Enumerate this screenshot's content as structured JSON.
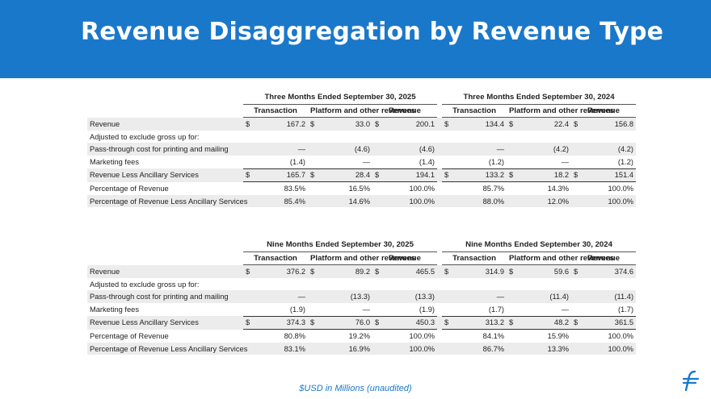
{
  "title": "Revenue Disaggregation by Revenue Type",
  "footnote": "$USD in Millions (unaudited)",
  "logo": {
    "icon": "f-logo-icon",
    "color": "#1a78cb"
  },
  "accent_color": "#1a78cb",
  "col_headers": {
    "transaction": "Transaction",
    "platform": "Platform and other revenues",
    "revenue": "Revenue"
  },
  "currency": "$",
  "tables": [
    {
      "period_a": "Three Months Ended September 30, 2025",
      "period_b": "Three Months Ended September 30, 2024",
      "rows": {
        "revenue": {
          "label": "Revenue",
          "a": [
            "167.2",
            "33.0",
            "200.1"
          ],
          "b": [
            "134.4",
            "22.4",
            "156.8"
          ]
        },
        "adjusted": {
          "label": "Adjusted to exclude gross up for:"
        },
        "passthrough": {
          "label": "Pass-through cost for printing and mailing",
          "a": [
            "—",
            "(4.6)",
            "(4.6)"
          ],
          "b": [
            "—",
            "(4.2)",
            "(4.2)"
          ]
        },
        "marketing": {
          "label": "Marketing fees",
          "a": [
            "(1.4)",
            "—",
            "(1.4)"
          ],
          "b": [
            "(1.2)",
            "—",
            "(1.2)"
          ]
        },
        "rlas": {
          "label": "Revenue Less Ancillary Services",
          "a": [
            "165.7",
            "28.4",
            "194.1"
          ],
          "b": [
            "133.2",
            "18.2",
            "151.4"
          ]
        },
        "pct_rev": {
          "label": "Percentage of Revenue",
          "a": [
            "83.5%",
            "16.5%",
            "100.0%"
          ],
          "b": [
            "85.7%",
            "14.3%",
            "100.0%"
          ]
        },
        "pct_rlas": {
          "label": "Percentage of Revenue Less Ancillary Services",
          "a": [
            "85.4%",
            "14.6%",
            "100.0%"
          ],
          "b": [
            "88.0%",
            "12.0%",
            "100.0%"
          ]
        }
      }
    },
    {
      "period_a": "Nine Months Ended September 30, 2025",
      "period_b": "Nine Months Ended September 30, 2024",
      "rows": {
        "revenue": {
          "label": "Revenue",
          "a": [
            "376.2",
            "89.2",
            "465.5"
          ],
          "b": [
            "314.9",
            "59.6",
            "374.6"
          ]
        },
        "adjusted": {
          "label": "Adjusted to exclude gross up for:"
        },
        "passthrough": {
          "label": "Pass-through cost for printing and mailing",
          "a": [
            "—",
            "(13.3)",
            "(13.3)"
          ],
          "b": [
            "—",
            "(11.4)",
            "(11.4)"
          ]
        },
        "marketing": {
          "label": "Marketing fees",
          "a": [
            "(1.9)",
            "—",
            "(1.9)"
          ],
          "b": [
            "(1.7)",
            "—",
            "(1.7)"
          ]
        },
        "rlas": {
          "label": "Revenue Less Ancillary Services",
          "a": [
            "374.3",
            "76.0",
            "450.3"
          ],
          "b": [
            "313.2",
            "48.2",
            "361.5"
          ]
        },
        "pct_rev": {
          "label": "Percentage of Revenue",
          "a": [
            "80.8%",
            "19.2%",
            "100.0%"
          ],
          "b": [
            "84.1%",
            "15.9%",
            "100.0%"
          ]
        },
        "pct_rlas": {
          "label": "Percentage of Revenue Less Ancillary Services",
          "a": [
            "83.1%",
            "16.9%",
            "100.0%"
          ],
          "b": [
            "86.7%",
            "13.3%",
            "100.0%"
          ]
        }
      }
    }
  ]
}
